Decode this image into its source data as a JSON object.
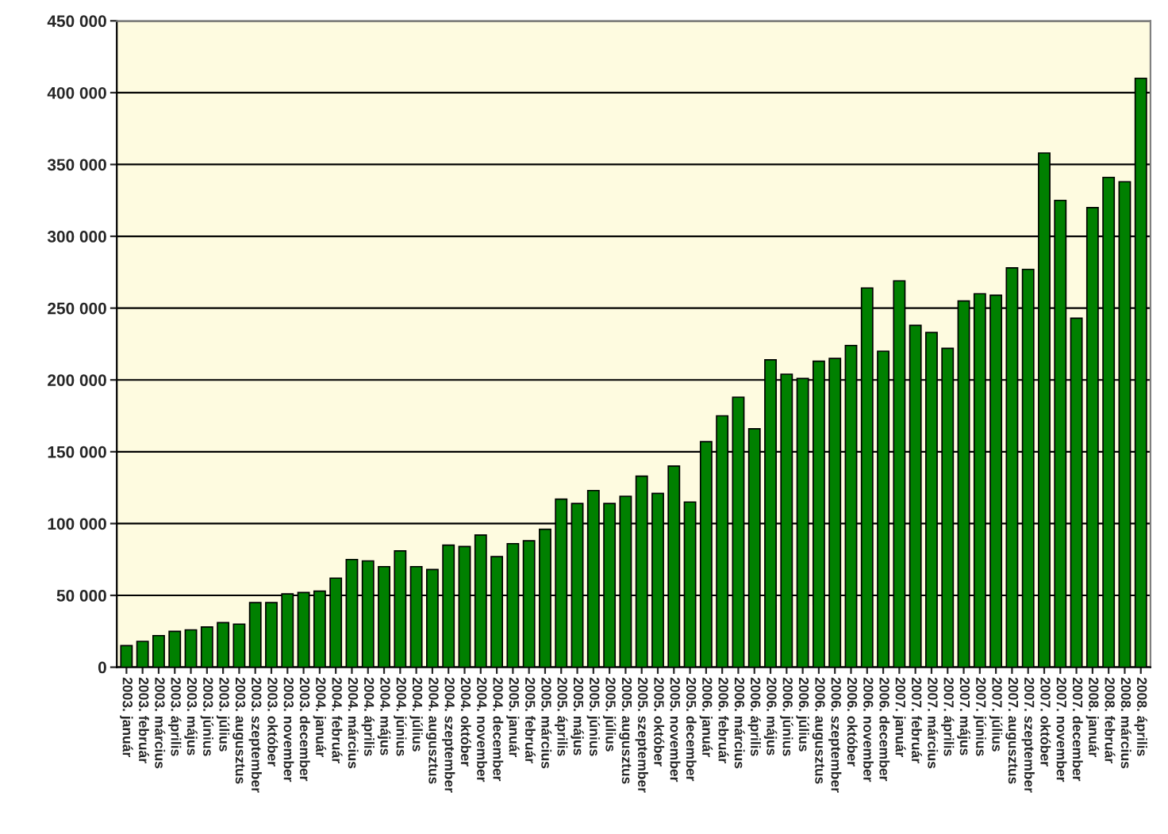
{
  "chart_data": {
    "type": "bar",
    "categories": [
      "2003. január",
      "2003. február",
      "2003. március",
      "2003. április",
      "2003. május",
      "2003. június",
      "2003. július",
      "2003. augusztus",
      "2003. szeptember",
      "2003. október",
      "2003. november",
      "2003. december",
      "2004. január",
      "2004. február",
      "2004. március",
      "2004. április",
      "2004. május",
      "2004. június",
      "2004. július",
      "2004. augusztus",
      "2004. szeptember",
      "2004. október",
      "2004. november",
      "2004. december",
      "2005. január",
      "2005. február",
      "2005. március",
      "2005. április",
      "2005. május",
      "2005. június",
      "2005. július",
      "2005. augusztus",
      "2005. szeptember",
      "2005. október",
      "2005. november",
      "2005. december",
      "2006. január",
      "2006. február",
      "2006. március",
      "2006. április",
      "2006. május",
      "2006. június",
      "2006. július",
      "2006. augusztus",
      "2006. szeptember",
      "2006. október",
      "2006. november",
      "2006. december",
      "2007. január",
      "2007. február",
      "2007. március",
      "2007. április",
      "2007. május",
      "2007. június",
      "2007. július",
      "2007. augusztus",
      "2007. szeptember",
      "2007. október",
      "2007. november",
      "2007. december",
      "2008. január",
      "2008. február",
      "2008. március",
      "2008. április"
    ],
    "values": [
      15000,
      18000,
      22000,
      25000,
      26000,
      28000,
      31000,
      30000,
      45000,
      45000,
      51000,
      52000,
      53000,
      62000,
      75000,
      74000,
      70000,
      81000,
      70000,
      68000,
      85000,
      84000,
      92000,
      77000,
      86000,
      88000,
      96000,
      117000,
      114000,
      123000,
      114000,
      119000,
      133000,
      121000,
      140000,
      115000,
      157000,
      175000,
      188000,
      166000,
      214000,
      204000,
      201000,
      213000,
      215000,
      224000,
      264000,
      220000,
      269000,
      238000,
      233000,
      222000,
      255000,
      260000,
      259000,
      278000,
      277000,
      358000,
      325000,
      243000,
      320000,
      341000,
      338000,
      410000
    ],
    "color": "#008000",
    "ylim": [
      0,
      450000
    ],
    "yticks": [
      0,
      {
        "value": 50000,
        "label": "50 000"
      },
      {
        "value": 100000,
        "label": "100 000"
      },
      {
        "value": 150000,
        "label": "150 000"
      },
      {
        "value": 200000,
        "label": "200 000"
      },
      {
        "value": 250000,
        "label": "250 000"
      },
      {
        "value": 300000,
        "label": "300 000"
      },
      {
        "value": 350000,
        "label": "350 000"
      },
      {
        "value": 400000,
        "label": "400 000"
      },
      {
        "value": 450000,
        "label": "450 000"
      }
    ],
    "grid": "y"
  }
}
